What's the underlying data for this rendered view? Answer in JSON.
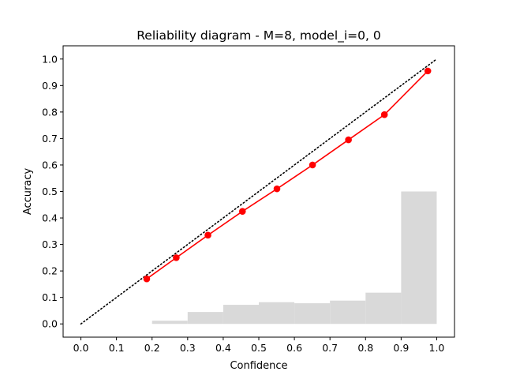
{
  "chart_data": {
    "type": "line",
    "title": "Reliability diagram - M=8, model_i=0, 0",
    "xlabel": "Confidence",
    "ylabel": "Accuracy",
    "xlim": [
      -0.05,
      1.05
    ],
    "ylim": [
      -0.05,
      1.05
    ],
    "xticks": [
      "0.0",
      "0.1",
      "0.2",
      "0.3",
      "0.4",
      "0.5",
      "0.6",
      "0.7",
      "0.8",
      "0.9",
      "1.0"
    ],
    "yticks": [
      "0.0",
      "0.1",
      "0.2",
      "0.3",
      "0.4",
      "0.5",
      "0.6",
      "0.7",
      "0.8",
      "0.9",
      "1.0"
    ],
    "grid": false,
    "series": [
      {
        "type": "line",
        "color": "#ff0000",
        "marker": "circle",
        "x": [
          0.185,
          0.268,
          0.357,
          0.454,
          0.551,
          0.651,
          0.752,
          0.853,
          0.975
        ],
        "y": [
          0.17,
          0.25,
          0.335,
          0.425,
          0.51,
          0.6,
          0.695,
          0.79,
          0.955
        ]
      },
      {
        "type": "reference",
        "style": "dotted",
        "color": "#000000",
        "x": [
          0,
          1
        ],
        "y": [
          0,
          1
        ]
      },
      {
        "type": "histogram",
        "color": "#d9d9d9",
        "bin_edges": [
          0.2,
          0.3,
          0.4,
          0.5,
          0.6,
          0.7,
          0.8,
          0.9,
          1.0
        ],
        "values": [
          0.012,
          0.045,
          0.072,
          0.082,
          0.078,
          0.088,
          0.118,
          0.5
        ]
      }
    ]
  }
}
